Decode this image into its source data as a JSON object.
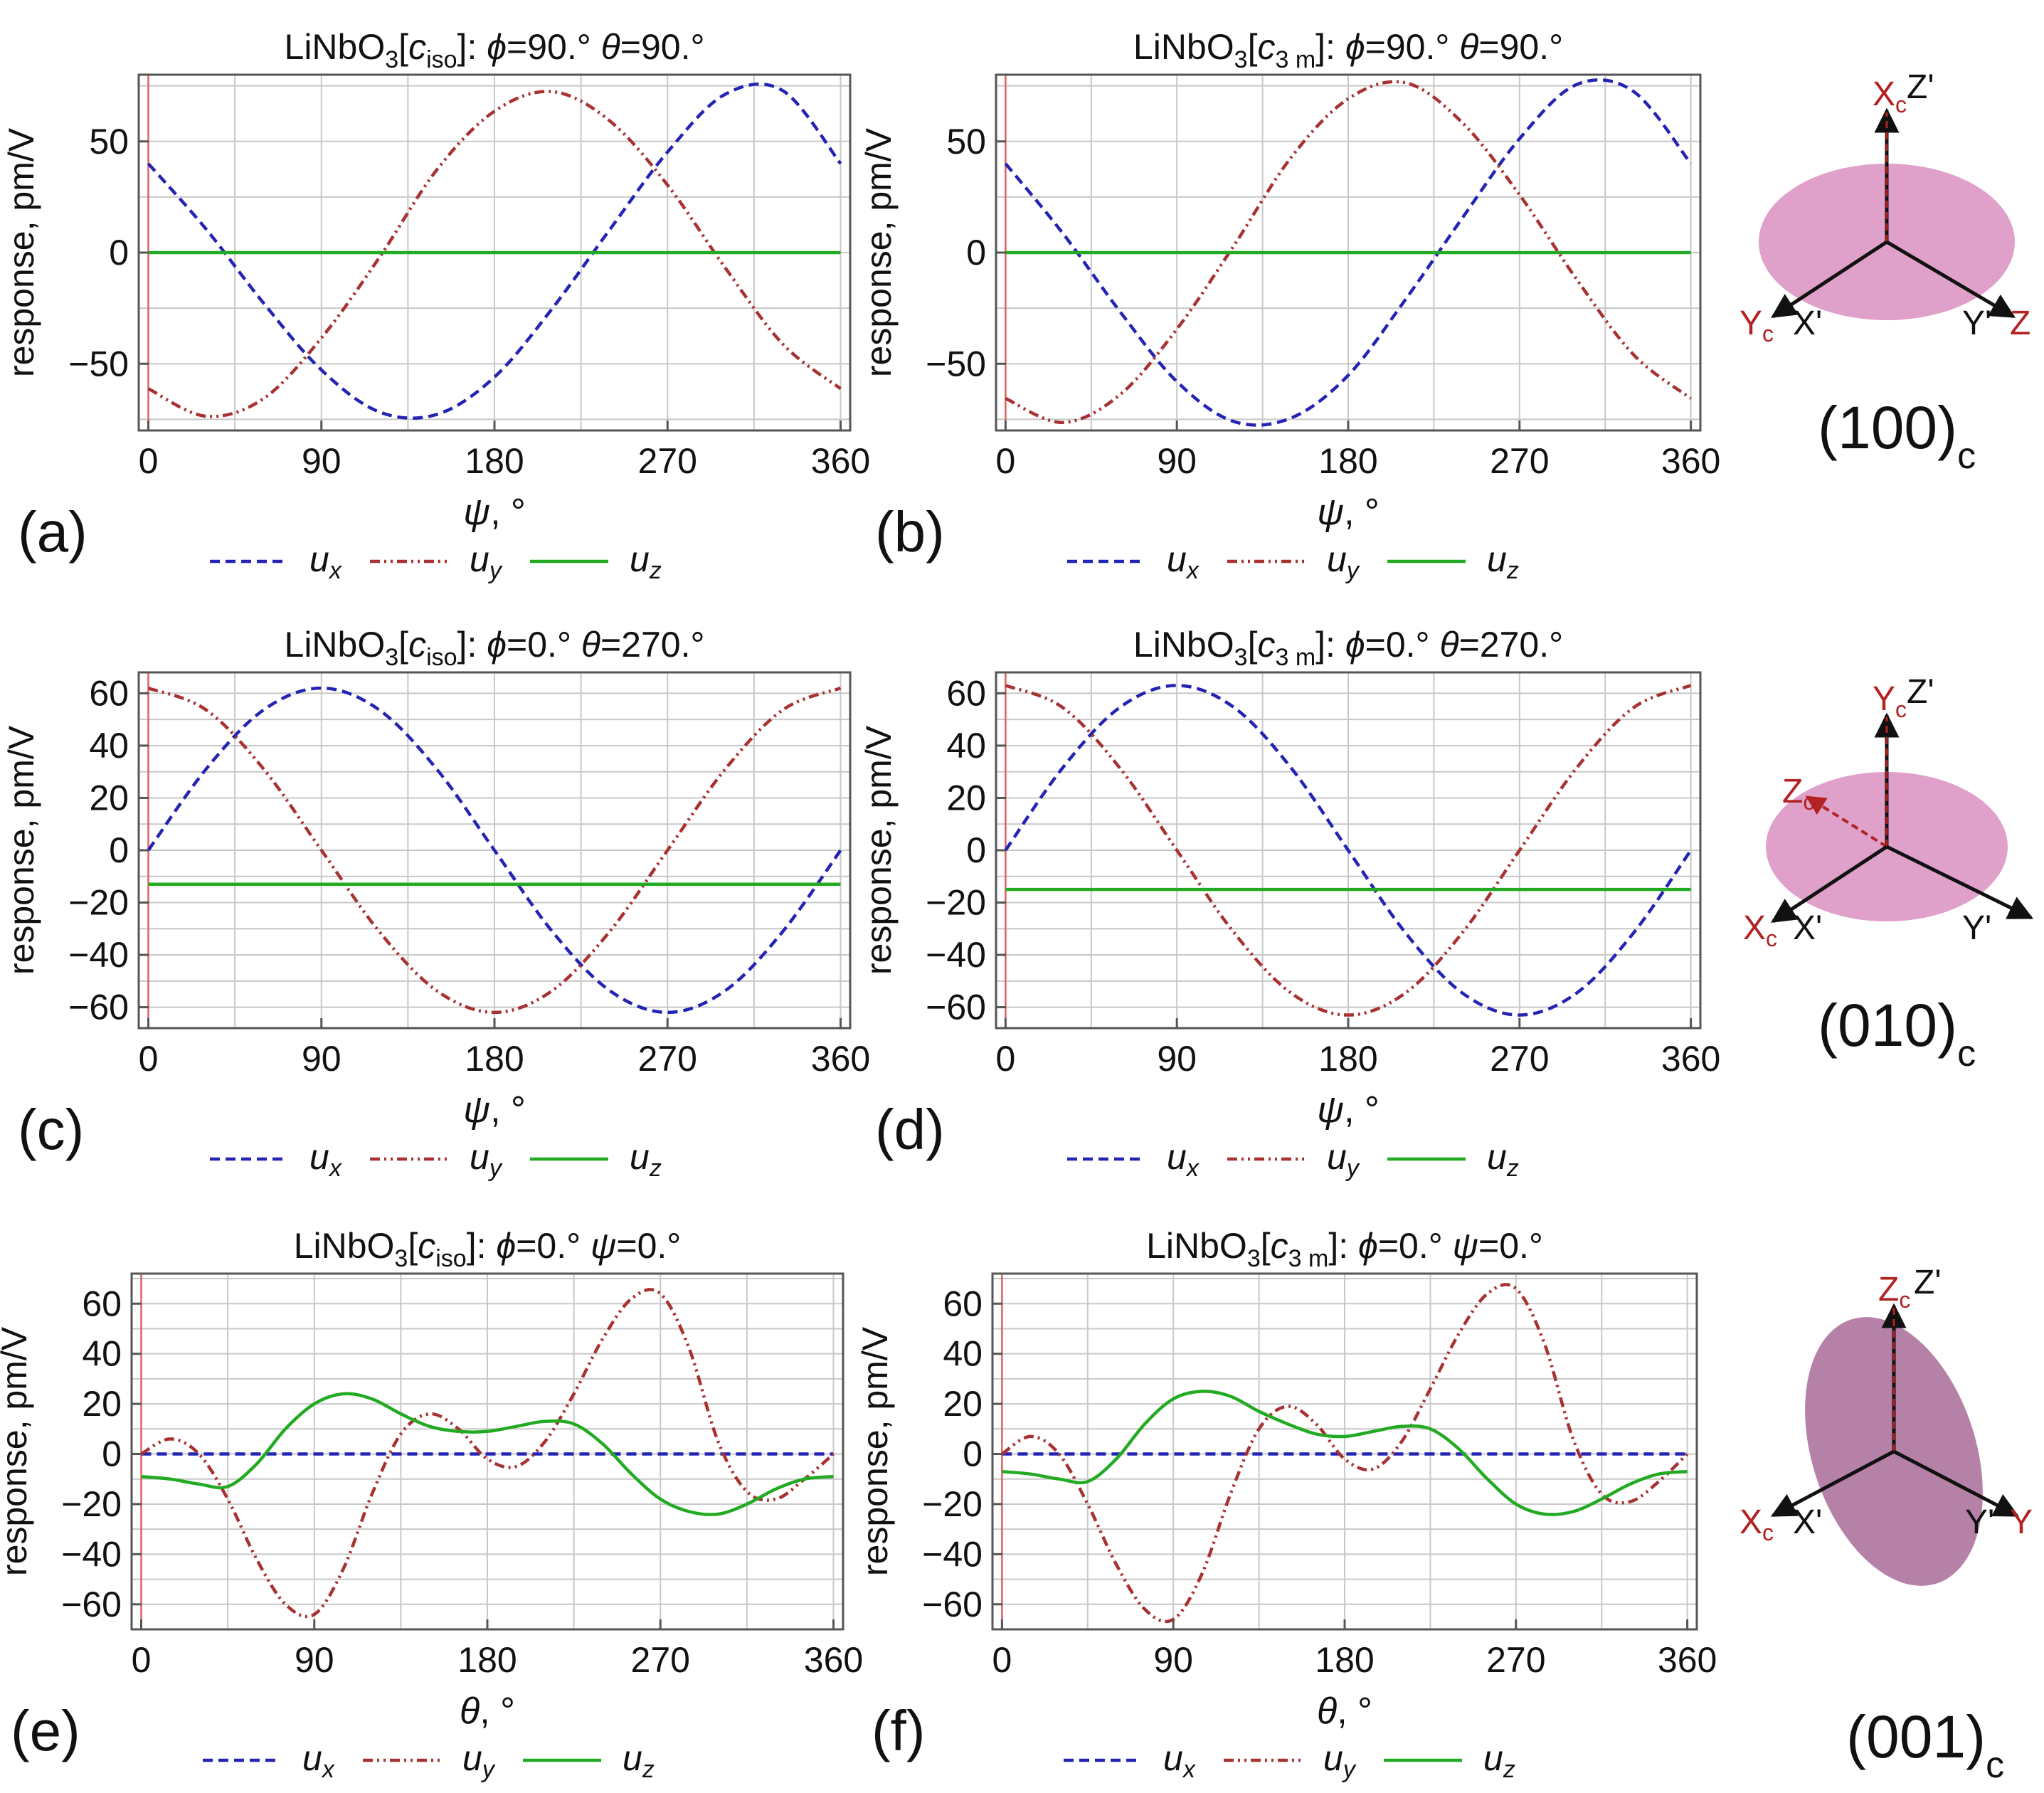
{
  "colors": {
    "ux": "#2424b4",
    "uy": "#a83232",
    "uz": "#22aa22",
    "frame": "#555555",
    "grid": "#c8c8c8",
    "redline": "#e06060",
    "disk": "#d98fc0",
    "disk001": "#a86b96",
    "axis": "#222222",
    "label": "#b22222"
  },
  "legend": {
    "ux": "u",
    "ux_sub": "x",
    "uy": "u",
    "uy_sub": "y",
    "uz": "u",
    "uz_sub": "z"
  },
  "chart_data": [
    {
      "id": "a",
      "panel_label": "(a)",
      "type": "line",
      "title": "LiNbO3[ciso]: ϕ=90.° θ=90.°",
      "title_parts": {
        "pre": "LiNbO",
        "sub": "3",
        "mid": "[c",
        "csub": "iso",
        "post": "]: ",
        "v1": "ϕ",
        "t1": "=90.° ",
        "v2": "θ",
        "t2": "=90.°"
      },
      "xlabel": "ψ, °",
      "ylabel": "response, pm/V",
      "xlim": [
        -5,
        365
      ],
      "ylim": [
        -80,
        80
      ],
      "xticks": [
        0,
        90,
        180,
        270,
        360
      ],
      "yticks": [
        -50,
        0,
        50
      ],
      "x": [
        0,
        30,
        60,
        90,
        120,
        150,
        180,
        210,
        240,
        270,
        300,
        330,
        360
      ],
      "series": [
        {
          "name": "ux",
          "values": [
            40.0,
            10.6,
            -22.8,
            -52.8,
            -71.6,
            -72.8,
            -56.0,
            -25.2,
            10.4,
            45.2,
            71.2,
            72.8,
            40.0
          ]
        },
        {
          "name": "uy",
          "values": [
            -61.2,
            -73.6,
            -65.6,
            -38.4,
            -2.4,
            37.2,
            63.6,
            72.4,
            59.2,
            30.4,
            -6.8,
            -41.2,
            -61.2
          ]
        },
        {
          "name": "uz",
          "values": [
            0,
            0,
            0,
            0,
            0,
            0,
            0,
            0,
            0,
            0,
            0,
            0,
            0
          ]
        }
      ]
    },
    {
      "id": "b",
      "panel_label": "(b)",
      "type": "line",
      "title": "LiNbO3[c3m]: ϕ=90.° θ=90.°",
      "title_parts": {
        "pre": "LiNbO",
        "sub": "3",
        "mid": "[c",
        "csub": "3 m",
        "post": "]: ",
        "v1": "ϕ",
        "t1": "=90.° ",
        "v2": "θ",
        "t2": "=90.°"
      },
      "xlabel": "ψ, °",
      "ylabel": "response, pm/V",
      "xlim": [
        -5,
        365
      ],
      "ylim": [
        -80,
        80
      ],
      "xticks": [
        0,
        90,
        180,
        270,
        360
      ],
      "yticks": [
        -50,
        0,
        50
      ],
      "x": [
        0,
        30,
        60,
        90,
        120,
        150,
        180,
        210,
        240,
        270,
        300,
        330,
        360
      ],
      "series": [
        {
          "name": "ux",
          "values": [
            40.0,
            8.8,
            -26.4,
            -58.0,
            -76.0,
            -74.4,
            -55.2,
            -21.2,
            15.6,
            51.2,
            75.6,
            72.4,
            40.0
          ]
        },
        {
          "name": "uy",
          "values": [
            -65.6,
            -76.4,
            -64.0,
            -34.4,
            3.2,
            42.8,
            69.2,
            76.4,
            58.4,
            26.0,
            -12.0,
            -46.0,
            -65.6
          ]
        },
        {
          "name": "uz",
          "values": [
            0,
            0,
            0,
            0,
            0,
            0,
            0,
            0,
            0,
            0,
            0,
            0,
            0
          ]
        }
      ]
    },
    {
      "id": "c",
      "panel_label": "(c)",
      "type": "line",
      "title": "LiNbO3[ciso]: ϕ=0.° θ=270.°",
      "title_parts": {
        "pre": "LiNbO",
        "sub": "3",
        "mid": "[c",
        "csub": "iso",
        "post": "]: ",
        "v1": "ϕ",
        "t1": "=0.° ",
        "v2": "θ",
        "t2": "=270.°"
      },
      "xlabel": "ψ, °",
      "ylabel": "response, pm/V",
      "xlim": [
        -5,
        365
      ],
      "ylim": [
        -68,
        68
      ],
      "xticks": [
        0,
        90,
        180,
        270,
        360
      ],
      "yticks": [
        -60,
        -40,
        -20,
        0,
        20,
        40,
        60
      ],
      "x": [
        0,
        30,
        60,
        90,
        120,
        150,
        180,
        210,
        240,
        270,
        300,
        330,
        360
      ],
      "series": [
        {
          "name": "ux",
          "values": [
            0,
            31.0,
            53.7,
            62.0,
            53.7,
            31.0,
            0,
            -31.0,
            -53.7,
            -62.0,
            -53.7,
            -31.0,
            0
          ]
        },
        {
          "name": "uy",
          "values": [
            62.0,
            53.7,
            31.0,
            0,
            -31.0,
            -53.7,
            -62.0,
            -53.7,
            -31.0,
            0,
            31.0,
            53.7,
            62.0
          ]
        },
        {
          "name": "uz",
          "values": [
            -13,
            -13,
            -13,
            -13,
            -13,
            -13,
            -13,
            -13,
            -13,
            -13,
            -13,
            -13,
            -13
          ]
        }
      ]
    },
    {
      "id": "d",
      "panel_label": "(d)",
      "type": "line",
      "title": "LiNbO3[c3m]: ϕ=0.° θ=270.°",
      "title_parts": {
        "pre": "LiNbO",
        "sub": "3",
        "mid": "[c",
        "csub": "3 m",
        "post": "]: ",
        "v1": "ϕ",
        "t1": "=0.° ",
        "v2": "θ",
        "t2": "=270.°"
      },
      "xlabel": "ψ, °",
      "ylabel": "response, pm/V",
      "xlim": [
        -5,
        365
      ],
      "ylim": [
        -68,
        68
      ],
      "xticks": [
        0,
        90,
        180,
        270,
        360
      ],
      "yticks": [
        -60,
        -40,
        -20,
        0,
        20,
        40,
        60
      ],
      "x": [
        0,
        30,
        60,
        90,
        120,
        150,
        180,
        210,
        240,
        270,
        300,
        330,
        360
      ],
      "series": [
        {
          "name": "ux",
          "values": [
            0,
            31.5,
            54.6,
            63.0,
            54.6,
            31.5,
            0,
            -31.5,
            -54.6,
            -63.0,
            -54.6,
            -31.5,
            0
          ]
        },
        {
          "name": "uy",
          "values": [
            63.0,
            54.6,
            31.5,
            0,
            -31.5,
            -54.6,
            -63.0,
            -54.6,
            -31.5,
            0,
            31.5,
            54.6,
            63.0
          ]
        },
        {
          "name": "uz",
          "values": [
            -15,
            -15,
            -15,
            -15,
            -15,
            -15,
            -15,
            -15,
            -15,
            -15,
            -15,
            -15,
            -15
          ]
        }
      ]
    },
    {
      "id": "e",
      "panel_label": "(e)",
      "type": "line",
      "title": "LiNbO3[ciso]: ϕ=0.° ψ=0.°",
      "title_parts": {
        "pre": "LiNbO",
        "sub": "3",
        "mid": "[c",
        "csub": "iso",
        "post": "]: ",
        "v1": "ϕ",
        "t1": "=0.° ",
        "v2": "ψ",
        "t2": "=0.°"
      },
      "xlabel": "θ, °",
      "ylabel": "response, pm/V",
      "xlim": [
        -5,
        365
      ],
      "ylim": [
        -70,
        72
      ],
      "xticks": [
        0,
        90,
        180,
        270,
        360
      ],
      "yticks": [
        -60,
        -40,
        -20,
        0,
        20,
        40,
        60
      ],
      "x": [
        0,
        15,
        30,
        45,
        60,
        75,
        90,
        105,
        120,
        135,
        150,
        165,
        180,
        195,
        210,
        225,
        240,
        255,
        270,
        285,
        300,
        315,
        330,
        345,
        360
      ],
      "series": [
        {
          "name": "ux",
          "values": [
            0,
            0,
            0,
            0,
            0,
            0,
            0,
            0,
            0,
            0,
            0,
            0,
            0,
            0,
            0,
            0,
            0,
            0,
            0,
            0,
            0,
            0,
            0,
            0,
            0
          ]
        },
        {
          "name": "uy",
          "values": [
            0,
            6,
            0,
            -18,
            -42,
            -60,
            -64,
            -46,
            -16,
            8,
            16,
            10,
            -2,
            -5,
            5,
            24,
            46,
            62,
            64,
            42,
            5,
            -15,
            -18,
            -10,
            0
          ]
        },
        {
          "name": "uz",
          "values": [
            -9,
            -10,
            -12,
            -13,
            -4,
            10,
            20,
            24,
            22,
            16,
            11,
            9,
            9,
            11,
            13,
            12,
            4,
            -8,
            -18,
            -23,
            -24,
            -20,
            -14,
            -10,
            -9
          ]
        }
      ]
    },
    {
      "id": "f",
      "panel_label": "(f)",
      "type": "line",
      "title": "LiNbO3[c3m]: ϕ=0.° ψ=0.°",
      "title_parts": {
        "pre": "LiNbO",
        "sub": "3",
        "mid": "[c",
        "csub": "3 m",
        "post": "]: ",
        "v1": "ϕ",
        "t1": "=0.° ",
        "v2": "ψ",
        "t2": "=0.°"
      },
      "xlabel": "θ, °",
      "ylabel": "response, pm/V",
      "xlim": [
        -5,
        365
      ],
      "ylim": [
        -70,
        72
      ],
      "xticks": [
        0,
        90,
        180,
        270,
        360
      ],
      "yticks": [
        -60,
        -40,
        -20,
        0,
        20,
        40,
        60
      ],
      "x": [
        0,
        15,
        30,
        45,
        60,
        75,
        90,
        105,
        120,
        135,
        150,
        165,
        180,
        195,
        210,
        225,
        240,
        255,
        270,
        285,
        300,
        315,
        330,
        345,
        360
      ],
      "series": [
        {
          "name": "ux",
          "values": [
            0,
            0,
            0,
            0,
            0,
            0,
            0,
            0,
            0,
            0,
            0,
            0,
            0,
            0,
            0,
            0,
            0,
            0,
            0,
            0,
            0,
            0,
            0,
            0,
            0
          ]
        },
        {
          "name": "uy",
          "values": [
            0,
            7,
            0,
            -20,
            -44,
            -62,
            -66,
            -48,
            -16,
            10,
            19,
            12,
            -2,
            -6,
            5,
            26,
            48,
            64,
            66,
            44,
            6,
            -16,
            -19,
            -11,
            0
          ]
        },
        {
          "name": "uz",
          "values": [
            -7,
            -8,
            -10,
            -11,
            -2,
            12,
            22,
            25,
            23,
            17,
            12,
            8,
            7,
            9,
            11,
            10,
            2,
            -10,
            -20,
            -24,
            -23,
            -18,
            -12,
            -8,
            -7
          ]
        }
      ]
    }
  ],
  "diagrams": [
    {
      "id": "d100",
      "caption_main": "(100)",
      "caption_sub": "c",
      "labels": {
        "top_c": "X",
        "top_c_sub": "c",
        "top_prime": "Z'",
        "left_c": "Y",
        "left_c_sub": "c",
        "left_prime": "X'",
        "right_prime": "Y'",
        "right_c": "Z"
      }
    },
    {
      "id": "d010",
      "caption_main": "(010)",
      "caption_sub": "c",
      "labels": {
        "top_c": "Y",
        "top_c_sub": "c",
        "top_prime": "Z'",
        "mid_c": "Z",
        "mid_c_sub": "c",
        "left_c": "X",
        "left_c_sub": "c",
        "left_prime": "X'",
        "right_prime": "Y'"
      }
    },
    {
      "id": "d001",
      "caption_main": "(001)",
      "caption_sub": "c",
      "labels": {
        "top_c": "Z",
        "top_c_sub": "c",
        "top_prime": "Z'",
        "left_c": "X",
        "left_c_sub": "c",
        "left_prime": "X'",
        "right_prime": "Y'",
        "right_c": "Y"
      }
    }
  ]
}
